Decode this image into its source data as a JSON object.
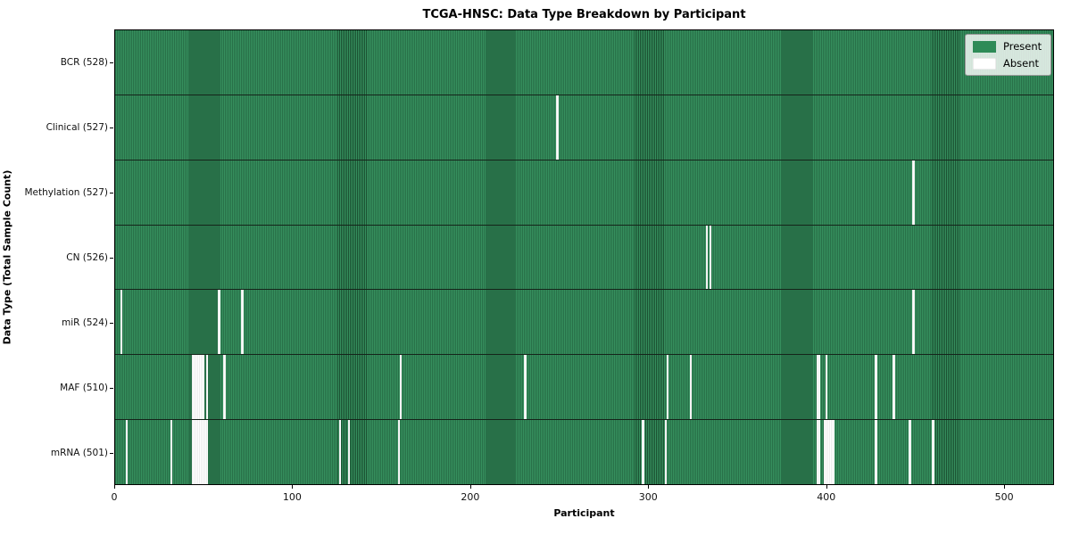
{
  "title": "TCGA-HNSC: Data Type Breakdown by Participant",
  "xlabel": "Participant",
  "ylabel": "Data Type (Total Sample Count)",
  "legend": {
    "present_label": "Present",
    "absent_label": "Absent"
  },
  "colors": {
    "present": "#2e8b57",
    "absent": "#ffffff",
    "border": "#000000"
  },
  "chart_data": {
    "type": "heatmap",
    "title": "TCGA-HNSC: Data Type Breakdown by Participant",
    "xlabel": "Participant",
    "ylabel": "Data Type (Total Sample Count)",
    "x_axis": {
      "min": 0,
      "max": 528,
      "ticks": [
        0,
        100,
        200,
        300,
        400,
        500
      ]
    },
    "total_participants": 528,
    "legend_position": "upper right",
    "legend_entries": [
      {
        "label": "Present",
        "color": "#2e8b57"
      },
      {
        "label": "Absent",
        "color": "#ffffff"
      }
    ],
    "rows": [
      {
        "name": "BCR",
        "label": "BCR (528)",
        "present_count": 528,
        "absent_participants": []
      },
      {
        "name": "Clinical",
        "label": "Clinical (527)",
        "present_count": 527,
        "absent_participants": [
          248
        ]
      },
      {
        "name": "Methylation",
        "label": "Methylation (527)",
        "present_count": 527,
        "absent_participants": [
          448
        ]
      },
      {
        "name": "CN",
        "label": "CN (526)",
        "present_count": 526,
        "absent_participants": [
          332,
          334
        ]
      },
      {
        "name": "miR",
        "label": "miR (524)",
        "present_count": 524,
        "absent_participants": [
          3,
          58,
          71,
          448
        ]
      },
      {
        "name": "MAF",
        "label": "MAF (510)",
        "present_count": 510,
        "absent_participants": [
          43,
          44,
          45,
          46,
          47,
          48,
          49,
          51,
          61,
          160,
          230,
          310,
          323,
          394,
          395,
          399,
          427,
          437
        ]
      },
      {
        "name": "mRNA",
        "label": "mRNA (501)",
        "present_count": 501,
        "absent_participants": [
          6,
          31,
          43,
          44,
          45,
          46,
          47,
          48,
          49,
          50,
          51,
          126,
          131,
          159,
          296,
          309,
          394,
          395,
          398,
          399,
          400,
          401,
          402,
          403,
          427,
          446,
          459
        ]
      }
    ]
  }
}
